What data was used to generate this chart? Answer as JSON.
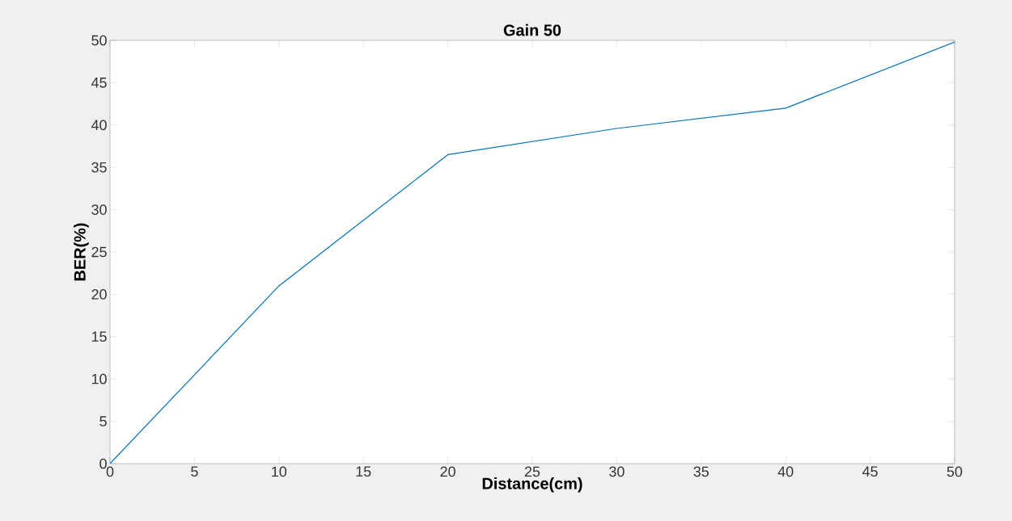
{
  "chart_data": {
    "type": "line",
    "title": "Gain 50",
    "xlabel": "Distance(cm)",
    "ylabel": "BER(%)",
    "x": [
      0,
      10,
      20,
      30,
      40,
      50
    ],
    "series": [
      {
        "color": "#0072bd",
        "values": [
          0,
          21,
          36.5,
          39.6,
          42,
          49.8
        ]
      }
    ],
    "xlim": [
      0,
      50
    ],
    "ylim": [
      0,
      50
    ],
    "xticks": [
      0,
      5,
      10,
      15,
      20,
      25,
      30,
      35,
      40,
      45,
      50
    ],
    "yticks": [
      0,
      5,
      10,
      15,
      20,
      25,
      30,
      35,
      40,
      45,
      50
    ],
    "grid": false,
    "legend": false,
    "marker": "none",
    "line_style": "solid"
  }
}
